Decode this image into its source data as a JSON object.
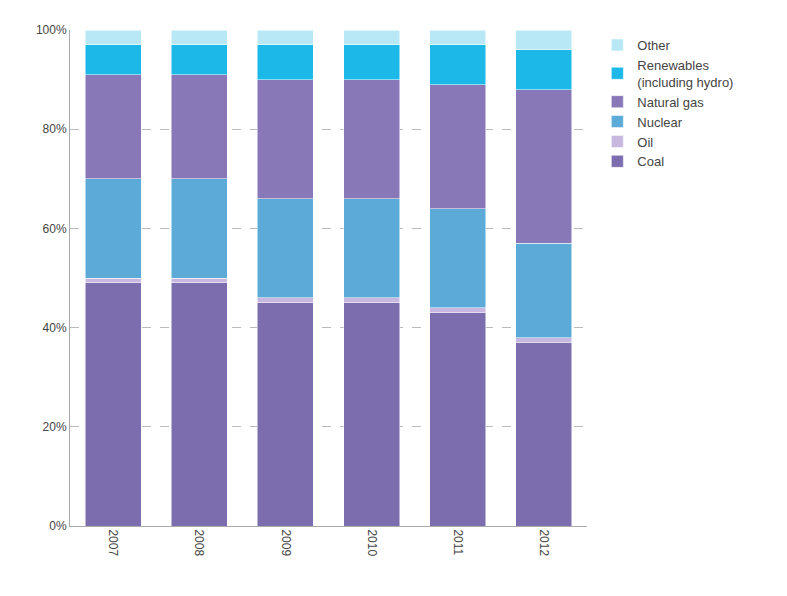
{
  "chart_data": {
    "type": "bar",
    "stacked": true,
    "categories": [
      "2007",
      "2008",
      "2009",
      "2010",
      "2011",
      "2012"
    ],
    "series": [
      {
        "name": "Coal",
        "color": "#7B6DAE",
        "values": [
          49,
          49,
          45,
          45,
          43,
          37
        ]
      },
      {
        "name": "Oil",
        "color": "#C8B8E0",
        "values": [
          1,
          1,
          1,
          1,
          1,
          1
        ]
      },
      {
        "name": "Nuclear",
        "color": "#5BAAD8",
        "values": [
          20,
          20,
          20,
          20,
          20,
          19
        ]
      },
      {
        "name": "Natural gas",
        "color": "#8878B8",
        "values": [
          21,
          21,
          24,
          24,
          25,
          31
        ]
      },
      {
        "name": "Renewables\n(including hydro)",
        "color": "#1BB8E8",
        "values": [
          6,
          6,
          7,
          7,
          8,
          8
        ]
      },
      {
        "name": "Other",
        "color": "#B8E8F5",
        "values": [
          3,
          3,
          3,
          3,
          3,
          4
        ]
      }
    ],
    "ylim": [
      0,
      100
    ],
    "yticks": [
      {
        "value": 0,
        "label": "0%"
      },
      {
        "value": 20,
        "label": "20%"
      },
      {
        "value": 40,
        "label": "40%"
      },
      {
        "value": 60,
        "label": "60%"
      },
      {
        "value": 80,
        "label": "80%"
      },
      {
        "value": 100,
        "label": "100%"
      }
    ],
    "grid": true,
    "legend": "upper right"
  }
}
